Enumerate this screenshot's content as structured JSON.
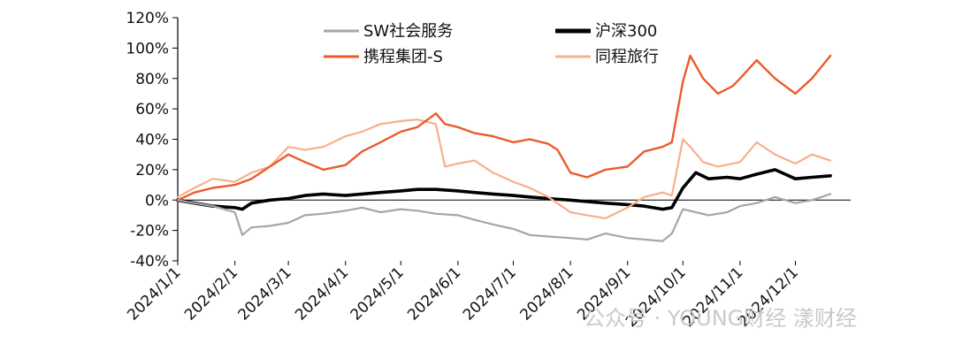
{
  "chart_data": {
    "type": "line",
    "title": "",
    "xlabel": "",
    "ylabel": "",
    "ylim": [
      -40,
      120
    ],
    "y_ticks": [
      -40,
      -20,
      0,
      20,
      40,
      60,
      80,
      100,
      120
    ],
    "y_tick_labels": [
      "-40%",
      "-20%",
      "0%",
      "20%",
      "40%",
      "60%",
      "80%",
      "100%",
      "120%"
    ],
    "x_tick_labels": [
      "2024/1/1",
      "2024/2/1",
      "2024/3/1",
      "2024/4/1",
      "2024/5/1",
      "2024/6/1",
      "2024/7/1",
      "2024/8/1",
      "2024/9/1",
      "2024/10/1",
      "2024/11/1",
      "2024/12/1"
    ],
    "zero_line": true,
    "grid": false,
    "legend_position": "top",
    "series": [
      {
        "name": "SW社会服务",
        "color": "#a6a6a6",
        "points": [
          [
            "2024/1/1",
            0
          ],
          [
            "2024/1/10",
            -2
          ],
          [
            "2024/1/20",
            -4
          ],
          [
            "2024/2/1",
            -8
          ],
          [
            "2024/2/5",
            -23
          ],
          [
            "2024/2/10",
            -18
          ],
          [
            "2024/2/20",
            -17
          ],
          [
            "2024/3/1",
            -15
          ],
          [
            "2024/3/10",
            -10
          ],
          [
            "2024/3/20",
            -9
          ],
          [
            "2024/4/1",
            -7
          ],
          [
            "2024/4/10",
            -5
          ],
          [
            "2024/4/20",
            -8
          ],
          [
            "2024/5/1",
            -6
          ],
          [
            "2024/5/10",
            -7
          ],
          [
            "2024/5/20",
            -9
          ],
          [
            "2024/6/1",
            -10
          ],
          [
            "2024/6/10",
            -13
          ],
          [
            "2024/6/20",
            -16
          ],
          [
            "2024/7/1",
            -19
          ],
          [
            "2024/7/10",
            -23
          ],
          [
            "2024/7/20",
            -24
          ],
          [
            "2024/8/1",
            -25
          ],
          [
            "2024/8/10",
            -26
          ],
          [
            "2024/8/20",
            -22
          ],
          [
            "2024/9/1",
            -25
          ],
          [
            "2024/9/10",
            -26
          ],
          [
            "2024/9/20",
            -27
          ],
          [
            "2024/9/25",
            -22
          ],
          [
            "2024/10/1",
            -6
          ],
          [
            "2024/10/8",
            -8
          ],
          [
            "2024/10/15",
            -10
          ],
          [
            "2024/10/25",
            -8
          ],
          [
            "2024/11/1",
            -4
          ],
          [
            "2024/11/10",
            -2
          ],
          [
            "2024/11/20",
            2
          ],
          [
            "2024/12/1",
            -2
          ],
          [
            "2024/12/10",
            0
          ],
          [
            "2024/12/20",
            4
          ]
        ]
      },
      {
        "name": "沪深300",
        "color": "#000000",
        "points": [
          [
            "2024/1/1",
            0
          ],
          [
            "2024/1/10",
            -2
          ],
          [
            "2024/1/20",
            -4
          ],
          [
            "2024/2/1",
            -5
          ],
          [
            "2024/2/5",
            -6
          ],
          [
            "2024/2/10",
            -2
          ],
          [
            "2024/2/20",
            0
          ],
          [
            "2024/3/1",
            1
          ],
          [
            "2024/3/10",
            3
          ],
          [
            "2024/3/20",
            4
          ],
          [
            "2024/4/1",
            3
          ],
          [
            "2024/4/10",
            4
          ],
          [
            "2024/4/20",
            5
          ],
          [
            "2024/5/1",
            6
          ],
          [
            "2024/5/10",
            7
          ],
          [
            "2024/5/20",
            7
          ],
          [
            "2024/6/1",
            6
          ],
          [
            "2024/6/10",
            5
          ],
          [
            "2024/6/20",
            4
          ],
          [
            "2024/7/1",
            3
          ],
          [
            "2024/7/10",
            2
          ],
          [
            "2024/7/20",
            1
          ],
          [
            "2024/8/1",
            0
          ],
          [
            "2024/8/10",
            -1
          ],
          [
            "2024/8/20",
            -2
          ],
          [
            "2024/9/1",
            -3
          ],
          [
            "2024/9/10",
            -4
          ],
          [
            "2024/9/20",
            -6
          ],
          [
            "2024/9/25",
            -5
          ],
          [
            "2024/10/1",
            8
          ],
          [
            "2024/10/8",
            18
          ],
          [
            "2024/10/15",
            14
          ],
          [
            "2024/10/25",
            15
          ],
          [
            "2024/11/1",
            14
          ],
          [
            "2024/11/10",
            17
          ],
          [
            "2024/11/20",
            20
          ],
          [
            "2024/12/1",
            14
          ],
          [
            "2024/12/10",
            15
          ],
          [
            "2024/12/20",
            16
          ]
        ]
      },
      {
        "name": "携程集团-S",
        "color": "#ea5b2c",
        "points": [
          [
            "2024/1/1",
            0
          ],
          [
            "2024/1/10",
            5
          ],
          [
            "2024/1/20",
            8
          ],
          [
            "2024/2/1",
            10
          ],
          [
            "2024/2/10",
            14
          ],
          [
            "2024/2/20",
            22
          ],
          [
            "2024/3/1",
            30
          ],
          [
            "2024/3/10",
            25
          ],
          [
            "2024/3/20",
            20
          ],
          [
            "2024/4/1",
            23
          ],
          [
            "2024/4/10",
            32
          ],
          [
            "2024/4/20",
            38
          ],
          [
            "2024/5/1",
            45
          ],
          [
            "2024/5/10",
            48
          ],
          [
            "2024/5/20",
            57
          ],
          [
            "2024/5/25",
            50
          ],
          [
            "2024/6/1",
            48
          ],
          [
            "2024/6/10",
            44
          ],
          [
            "2024/6/20",
            42
          ],
          [
            "2024/7/1",
            38
          ],
          [
            "2024/7/10",
            40
          ],
          [
            "2024/7/20",
            37
          ],
          [
            "2024/7/25",
            33
          ],
          [
            "2024/8/1",
            18
          ],
          [
            "2024/8/10",
            15
          ],
          [
            "2024/8/20",
            20
          ],
          [
            "2024/9/1",
            22
          ],
          [
            "2024/9/10",
            32
          ],
          [
            "2024/9/20",
            35
          ],
          [
            "2024/9/25",
            38
          ],
          [
            "2024/10/1",
            78
          ],
          [
            "2024/10/5",
            95
          ],
          [
            "2024/10/12",
            80
          ],
          [
            "2024/10/20",
            70
          ],
          [
            "2024/10/28",
            75
          ],
          [
            "2024/11/1",
            80
          ],
          [
            "2024/11/10",
            92
          ],
          [
            "2024/11/20",
            80
          ],
          [
            "2024/12/1",
            70
          ],
          [
            "2024/12/10",
            80
          ],
          [
            "2024/12/20",
            95
          ]
        ]
      },
      {
        "name": "同程旅行",
        "color": "#f7b08c",
        "points": [
          [
            "2024/1/1",
            2
          ],
          [
            "2024/1/10",
            8
          ],
          [
            "2024/1/20",
            14
          ],
          [
            "2024/2/1",
            12
          ],
          [
            "2024/2/10",
            18
          ],
          [
            "2024/2/20",
            22
          ],
          [
            "2024/3/1",
            35
          ],
          [
            "2024/3/10",
            33
          ],
          [
            "2024/3/20",
            35
          ],
          [
            "2024/4/1",
            42
          ],
          [
            "2024/4/10",
            45
          ],
          [
            "2024/4/20",
            50
          ],
          [
            "2024/5/1",
            52
          ],
          [
            "2024/5/10",
            53
          ],
          [
            "2024/5/20",
            50
          ],
          [
            "2024/5/25",
            22
          ],
          [
            "2024/6/1",
            24
          ],
          [
            "2024/6/10",
            26
          ],
          [
            "2024/6/20",
            18
          ],
          [
            "2024/7/1",
            12
          ],
          [
            "2024/7/10",
            8
          ],
          [
            "2024/7/20",
            2
          ],
          [
            "2024/8/1",
            -8
          ],
          [
            "2024/8/10",
            -10
          ],
          [
            "2024/8/20",
            -12
          ],
          [
            "2024/9/1",
            -5
          ],
          [
            "2024/9/10",
            2
          ],
          [
            "2024/9/20",
            5
          ],
          [
            "2024/9/25",
            3
          ],
          [
            "2024/10/1",
            40
          ],
          [
            "2024/10/5",
            35
          ],
          [
            "2024/10/12",
            25
          ],
          [
            "2024/10/20",
            22
          ],
          [
            "2024/11/1",
            25
          ],
          [
            "2024/11/10",
            38
          ],
          [
            "2024/11/20",
            30
          ],
          [
            "2024/12/1",
            24
          ],
          [
            "2024/12/10",
            30
          ],
          [
            "2024/12/20",
            26
          ]
        ]
      }
    ]
  },
  "watermark": "公众号 · YOUNG财经 漾财经"
}
